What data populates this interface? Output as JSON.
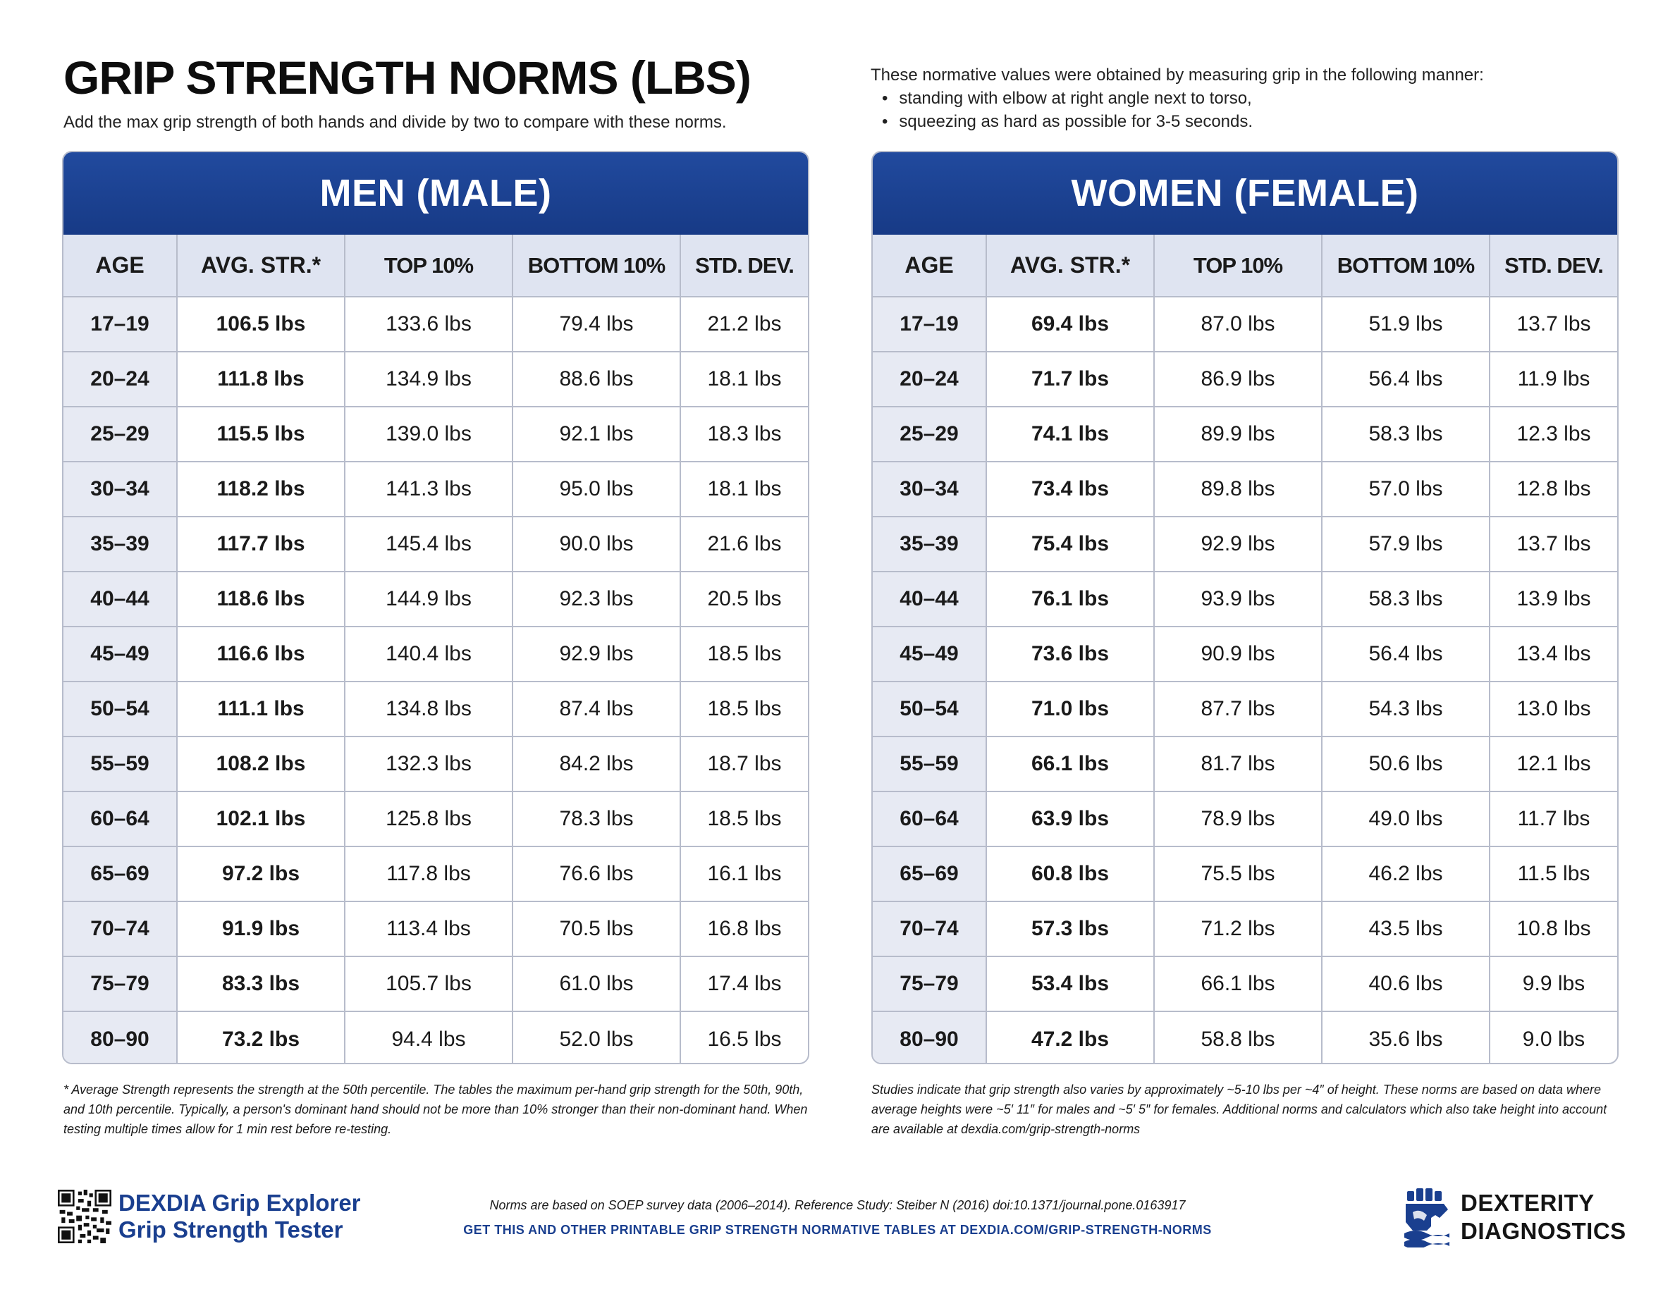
{
  "header": {
    "title": "GRIP STRENGTH NORMS (LBS)",
    "subtitle": "Add the max grip strength of both hands and divide by two to compare with these norms.",
    "method_intro": "These normative values were obtained by measuring grip in the following manner:",
    "method_points": [
      "standing with elbow at right angle next to torso,",
      "squeezing as hard as possible for 3-5 seconds."
    ]
  },
  "columns": [
    "AGE",
    "AVG. STR.*",
    "TOP 10%",
    "BOTTOM 10%",
    "STD. DEV."
  ],
  "men": {
    "title": "MEN (MALE)",
    "rows": [
      [
        "17–19",
        "106.5 lbs",
        "133.6 lbs",
        "79.4 lbs",
        "21.2 lbs"
      ],
      [
        "20–24",
        "111.8 lbs",
        "134.9 lbs",
        "88.6 lbs",
        "18.1 lbs"
      ],
      [
        "25–29",
        "115.5 lbs",
        "139.0 lbs",
        "92.1 lbs",
        "18.3 lbs"
      ],
      [
        "30–34",
        "118.2 lbs",
        "141.3 lbs",
        "95.0 lbs",
        "18.1 lbs"
      ],
      [
        "35–39",
        "117.7 lbs",
        "145.4 lbs",
        "90.0 lbs",
        "21.6 lbs"
      ],
      [
        "40–44",
        "118.6 lbs",
        "144.9 lbs",
        "92.3 lbs",
        "20.5 lbs"
      ],
      [
        "45–49",
        "116.6 lbs",
        "140.4 lbs",
        "92.9 lbs",
        "18.5 lbs"
      ],
      [
        "50–54",
        "111.1 lbs",
        "134.8 lbs",
        "87.4 lbs",
        "18.5 lbs"
      ],
      [
        "55–59",
        "108.2 lbs",
        "132.3 lbs",
        "84.2 lbs",
        "18.7 lbs"
      ],
      [
        "60–64",
        "102.1 lbs",
        "125.8 lbs",
        "78.3 lbs",
        "18.5 lbs"
      ],
      [
        "65–69",
        "97.2 lbs",
        "117.8 lbs",
        "76.6 lbs",
        "16.1 lbs"
      ],
      [
        "70–74",
        "91.9 lbs",
        "113.4 lbs",
        "70.5 lbs",
        "16.8 lbs"
      ],
      [
        "75–79",
        "83.3 lbs",
        "105.7 lbs",
        "61.0 lbs",
        "17.4 lbs"
      ],
      [
        "80–90",
        "73.2 lbs",
        "94.4 lbs",
        "52.0 lbs",
        "16.5 lbs"
      ]
    ]
  },
  "women": {
    "title": "WOMEN (FEMALE)",
    "rows": [
      [
        "17–19",
        "69.4 lbs",
        "87.0 lbs",
        "51.9 lbs",
        "13.7 lbs"
      ],
      [
        "20–24",
        "71.7 lbs",
        "86.9 lbs",
        "56.4 lbs",
        "11.9 lbs"
      ],
      [
        "25–29",
        "74.1 lbs",
        "89.9 lbs",
        "58.3 lbs",
        "12.3 lbs"
      ],
      [
        "30–34",
        "73.4 lbs",
        "89.8 lbs",
        "57.0 lbs",
        "12.8 lbs"
      ],
      [
        "35–39",
        "75.4 lbs",
        "92.9 lbs",
        "57.9 lbs",
        "13.7 lbs"
      ],
      [
        "40–44",
        "76.1 lbs",
        "93.9 lbs",
        "58.3 lbs",
        "13.9 lbs"
      ],
      [
        "45–49",
        "73.6 lbs",
        "90.9 lbs",
        "56.4 lbs",
        "13.4 lbs"
      ],
      [
        "50–54",
        "71.0 lbs",
        "87.7 lbs",
        "54.3 lbs",
        "13.0 lbs"
      ],
      [
        "55–59",
        "66.1 lbs",
        "81.7 lbs",
        "50.6 lbs",
        "12.1 lbs"
      ],
      [
        "60–64",
        "63.9 lbs",
        "78.9 lbs",
        "49.0 lbs",
        "11.7 lbs"
      ],
      [
        "65–69",
        "60.8 lbs",
        "75.5 lbs",
        "46.2 lbs",
        "11.5 lbs"
      ],
      [
        "70–74",
        "57.3 lbs",
        "71.2 lbs",
        "43.5 lbs",
        "10.8 lbs"
      ],
      [
        "75–79",
        "53.4 lbs",
        "66.1 lbs",
        "40.6 lbs",
        "9.9 lbs"
      ],
      [
        "80–90",
        "47.2 lbs",
        "58.8 lbs",
        "35.6 lbs",
        "9.0 lbs"
      ]
    ]
  },
  "notes": {
    "left": "* Average Strength represents the strength at the 50th percentile. The tables the maximum per-hand grip strength for the 50th, 90th, and 10th percentile. Typically, a person's dominant hand should not be more than 10% stronger than their non-dominant hand. When testing multiple times allow for 1 min rest before re-testing.",
    "right": "Studies indicate that grip strength also varies by approximately ~5-10 lbs per ~4″ of height. These norms are based on data where average heights were ~5′ 11″ for males and ~5′ 5″ for females. Additional norms and calculators which also take height into account are available at dexdia.com/grip-strength-norms"
  },
  "footer": {
    "brand_left_line1": "DEXDIA Grip Explorer",
    "brand_left_line2": "Grip Strength Tester",
    "reference": "Norms are based on SOEP survey data (2006–2014). Reference Study: Steiber N (2016) doi:10.1371/journal.pone.0163917",
    "cta": "GET THIS AND OTHER PRINTABLE GRIP STRENGTH NORMATIVE TABLES AT DEXDIA.COM/GRIP-STRENGTH-NORMS",
    "brand_right_line1": "DEXTERITY",
    "brand_right_line2": "DIAGNOSTICS",
    "icons": [
      "qr-code-icon",
      "hand-logo-icon"
    ]
  },
  "colors": {
    "header_blue": "#1b4290",
    "header_row": "#dfe4f1",
    "age_col": "#e7eaf3",
    "border": "#b7bccb",
    "brand_blue": "#1a3f8f"
  }
}
